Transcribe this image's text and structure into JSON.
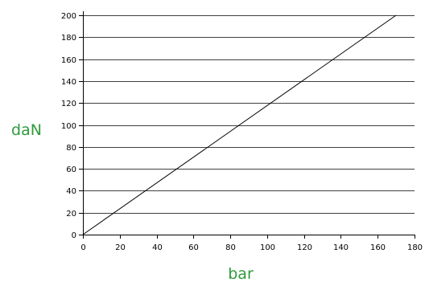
{
  "chart_data": {
    "type": "line",
    "title": "",
    "xlabel": "bar",
    "ylabel": "daN",
    "xlim": [
      0,
      180
    ],
    "ylim": [
      0,
      200
    ],
    "x_ticks": [
      0,
      20,
      40,
      60,
      80,
      100,
      120,
      140,
      160,
      180
    ],
    "y_ticks": [
      0,
      20,
      40,
      60,
      80,
      100,
      120,
      140,
      160,
      180,
      200
    ],
    "grid": "horizontal",
    "legend": "none",
    "series": [
      {
        "x": [
          0,
          170
        ],
        "y": [
          0,
          200
        ]
      }
    ]
  },
  "colors": {
    "axis_title": "#2e9a3c",
    "line": "#000000",
    "grid": "#000000",
    "background": "#ffffff"
  }
}
